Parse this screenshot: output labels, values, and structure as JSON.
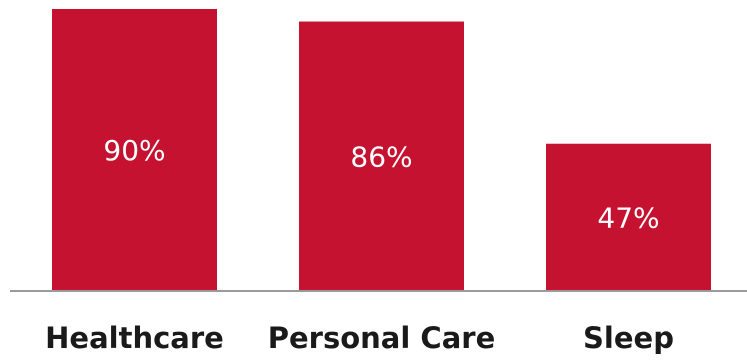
{
  "chart_data": {
    "type": "bar",
    "categories": [
      "Healthcare",
      "Personal Care",
      "Sleep"
    ],
    "values": [
      90,
      86,
      47
    ],
    "data_labels": [
      "90%",
      "86%",
      "47%"
    ],
    "unit": "%",
    "title": "",
    "xlabel": "",
    "ylabel": "",
    "ylim": [
      0,
      100
    ],
    "grid": false,
    "legend": "none",
    "colors": {
      "bar": "#C41230",
      "baseline": "#9a9a9a",
      "label_text": "#1a1a1a",
      "value_text": "#ffffff"
    }
  }
}
